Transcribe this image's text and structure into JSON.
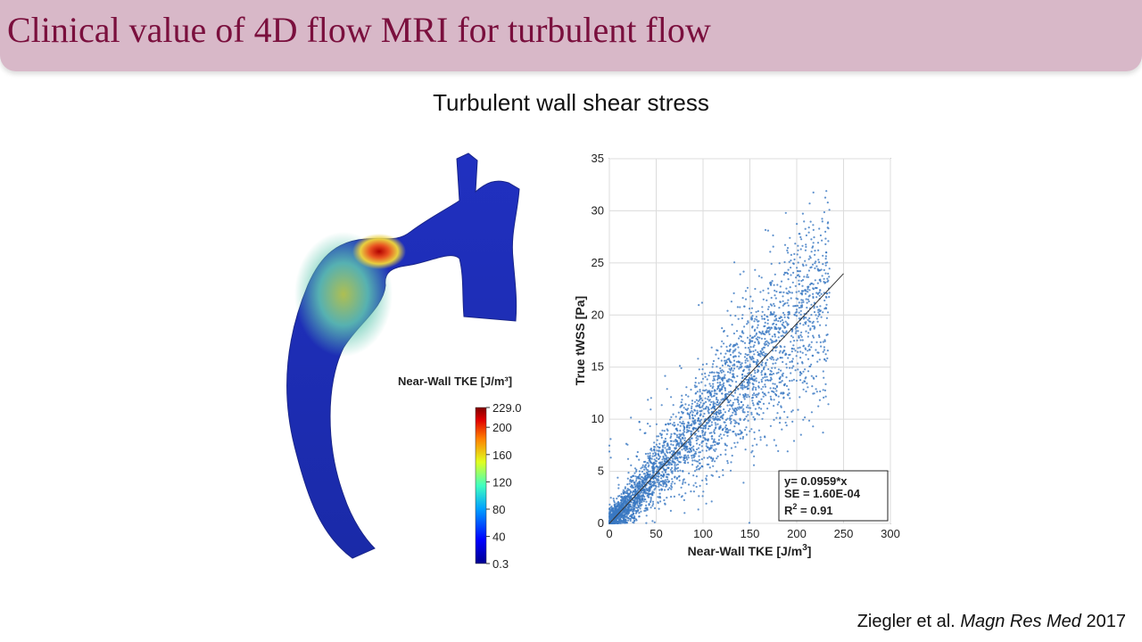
{
  "slide": {
    "title": "Clinical value of 4D flow MRI for turbulent flow",
    "subtitle": "Turbulent wall shear stress",
    "citation": {
      "authors": "Ziegler et al.",
      "journal": "Magn Res Med",
      "year": "2017"
    }
  },
  "aorta_figure": {
    "colorbar_title": "Near-Wall TKE [J/m³]",
    "colorbar_ticks": [
      "229.0",
      "200",
      "160",
      "120",
      "80",
      "40",
      "0.3"
    ],
    "colorbar_values": [
      229.0,
      200,
      160,
      120,
      80,
      40,
      0.3
    ],
    "colors": {
      "low": "#1a2fbf",
      "mid": "#4fd0e0",
      "high_mid": "#e8e84a",
      "high": "#8b0000"
    }
  },
  "chart_data": {
    "type": "scatter",
    "xlabel": "Near-Wall TKE [J/m",
    "xlabel_sup": "3",
    "xlabel_end": "]",
    "ylabel": "True tWSS [Pa]",
    "xlim": [
      0,
      300
    ],
    "ylim": [
      0,
      35
    ],
    "xticks": [
      0,
      50,
      100,
      150,
      200,
      250,
      300
    ],
    "yticks": [
      0,
      5,
      10,
      15,
      20,
      25,
      30,
      35
    ],
    "grid": true,
    "point_color": "#3a78c2",
    "fit_line": {
      "slope": 0.0959,
      "x_range": [
        0,
        250
      ]
    },
    "annotation": {
      "line1": "y= 0.0959*x",
      "line2": "SE = 1.60E-04",
      "line3_prefix": "R",
      "line3_sup": "2",
      "line3_suffix": " = 0.91"
    },
    "point_cloud": {
      "count": 3500,
      "x_range": [
        0,
        235
      ],
      "approx_slope": 0.0959
    }
  }
}
